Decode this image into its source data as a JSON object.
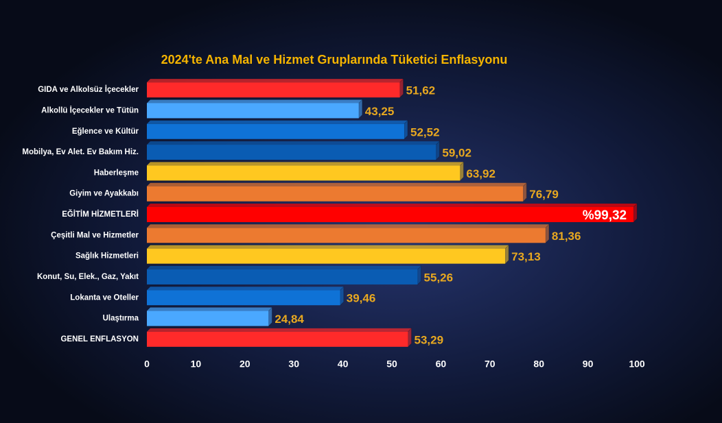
{
  "chart_data": {
    "type": "hbar",
    "title": "2024'te Ana Mal ve Hizmet Gruplarında Tüketici Enflasyonu",
    "categories": [
      "GIDA ve Alkolsüz İçecekler",
      "Alkollü İçecekler ve Tütün",
      "Eğlence ve Kültür",
      "Mobilya, Ev Alet. Ev Bakım Hiz.",
      "Haberleşme",
      "Giyim ve Ayakkabı",
      "EĞİTİM HİZMETLERİ",
      "Çeşitli Mal ve Hizmetler",
      "Sağlık Hizmetleri",
      "Konut, Su, Elek., Gaz, Yakıt",
      "Lokanta ve Oteller",
      "Ulaştırma",
      "GENEL ENFLASYON"
    ],
    "values": [
      51.62,
      43.25,
      52.52,
      59.02,
      63.92,
      76.79,
      99.32,
      81.36,
      73.13,
      55.26,
      39.46,
      24.84,
      53.29
    ],
    "value_labels": [
      "51,62",
      "43,25",
      "52,52",
      "59,02",
      "63,92",
      "76,79",
      "%99,32",
      "81,36",
      "73,13",
      "55,26",
      "39,46",
      "24,84",
      "53,29"
    ],
    "colors": [
      "#ff2a2a",
      "#4aa8ff",
      "#0f72d6",
      "#0a5cb3",
      "#ffc820",
      "#ec7a30",
      "#ff0000",
      "#ec7a30",
      "#ffc820",
      "#0a5cb3",
      "#0f72d6",
      "#4aa8ff",
      "#ff2a2a"
    ],
    "xlim": [
      0,
      100
    ],
    "xticks": [
      0,
      10,
      20,
      30,
      40,
      50,
      60,
      70,
      80,
      90,
      100
    ],
    "grid": false
  }
}
